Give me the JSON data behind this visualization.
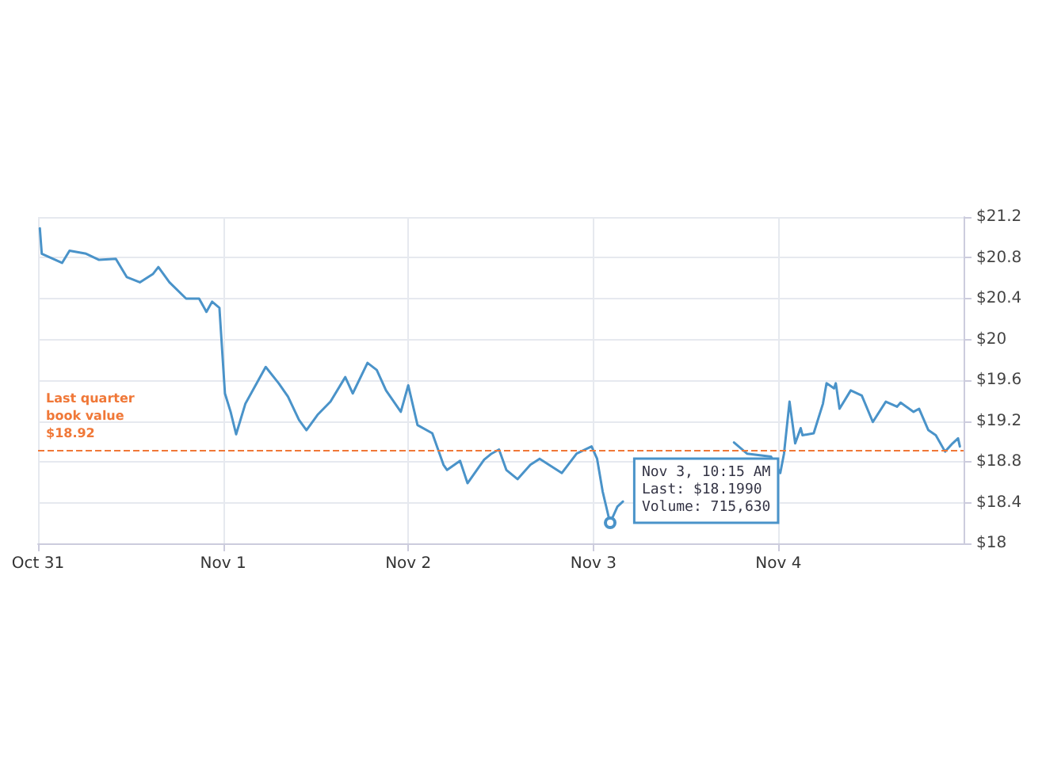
{
  "chart_data": {
    "type": "line",
    "x": [
      "--10-31T00:14",
      "--10-31T00:29",
      "--10-31T03:07",
      "--10-31T04:05",
      "--10-31T06:14",
      "--10-31T07:55",
      "--10-31T10:05",
      "--10-31T11:31",
      "--10-31T13:12",
      "--10-31T14:53",
      "--10-31T15:36",
      "--10-31T17:02",
      "--10-31T19:12",
      "--10-31T20:53",
      "--10-31T21:50",
      "--10-31T22:34",
      "--10-31T23:31",
      "--11-01T00:14",
      "--11-01T00:58",
      "--11-01T01:41",
      "--11-01T02:53",
      "--11-01T04:34",
      "--11-01T05:31",
      "--11-01T07:12",
      "--11-01T08:24",
      "--11-01T09:50",
      "--11-01T10:48",
      "--11-01T12:14",
      "--11-01T13:55",
      "--11-01T15:50",
      "--11-01T16:48",
      "--11-01T18:43",
      "--11-01T19:55",
      "--11-01T21:07",
      "--11-01T23:02",
      "--11-02T00:00",
      "--11-02T01:12",
      "--11-02T03:07",
      "--11-02T04:34",
      "--11-02T05:02",
      "--11-02T06:43",
      "--11-02T07:41",
      "--11-02T09:50",
      "--11-02T10:48",
      "--11-02T11:46",
      "--11-02T12:43",
      "--11-02T14:10",
      "--11-02T15:50",
      "--11-02T17:02",
      "--11-02T19:55",
      "--11-02T21:50",
      "--11-02T23:46",
      "--11-03T00:29",
      "--11-03T01:12",
      "--11-03T02:10",
      "--11-03T03:07",
      "--11-03T03:50",
      "--11-03T12:00",
      "--11-03T18:14",
      "--11-03T19:55",
      "--11-03T23:02",
      "--11-04T00:14",
      "--11-04T00:43",
      "--11-04T01:26",
      "--11-04T02:10",
      "--11-04T02:53",
      "--11-04T03:07",
      "--11-04T04:34",
      "--11-04T05:46",
      "--11-04T06:14",
      "--11-04T07:12",
      "--11-04T07:26",
      "--11-04T07:55",
      "--11-04T09:22",
      "--11-04T10:48",
      "--11-04T12:14",
      "--11-04T13:55",
      "--11-04T15:22",
      "--11-04T15:50",
      "--11-04T17:31",
      "--11-04T18:14",
      "--11-04T19:26",
      "--11-04T20:24",
      "--11-04T21:36",
      "--11-04T22:34",
      "--11-04T23:17",
      "--11-04T23:31"
    ],
    "series": [
      {
        "color": "#4a93c9",
        "values": [
          21.09,
          20.84,
          20.75,
          20.87,
          20.84,
          20.78,
          20.79,
          20.61,
          20.56,
          20.64,
          20.71,
          20.56,
          20.4,
          20.4,
          20.27,
          20.37,
          20.31,
          19.47,
          19.29,
          19.07,
          19.37,
          19.6,
          19.73,
          19.57,
          19.44,
          19.21,
          19.11,
          19.26,
          19.39,
          19.63,
          19.47,
          19.77,
          19.7,
          19.5,
          19.29,
          19.55,
          19.16,
          19.08,
          18.77,
          18.72,
          18.81,
          18.59,
          18.82,
          18.88,
          18.92,
          18.72,
          18.63,
          18.77,
          18.83,
          18.69,
          18.88,
          18.95,
          18.83,
          18.51,
          18.2,
          18.36,
          18.41,
          null,
          18.99,
          18.88,
          18.85,
          18.69,
          18.88,
          19.39,
          18.98,
          19.13,
          19.06,
          19.08,
          19.37,
          19.57,
          19.52,
          19.57,
          19.32,
          19.5,
          19.45,
          19.19,
          19.39,
          19.34,
          19.38,
          19.29,
          19.32,
          19.11,
          19.06,
          18.9,
          18.98,
          19.03,
          18.95
        ]
      }
    ],
    "xlim": [
      "--10-31T00:00",
      "--11-05T00:00"
    ],
    "xticks": [
      {
        "value": "--10-31",
        "label": "Oct 31"
      },
      {
        "value": "--11-01",
        "label": "Nov 1"
      },
      {
        "value": "--11-02",
        "label": "Nov 2"
      },
      {
        "value": "--11-03",
        "label": "Nov 3"
      },
      {
        "value": "--11-04",
        "label": "Nov 4"
      }
    ],
    "ylim": [
      18,
      21.2
    ],
    "yticks": [
      {
        "value": 18,
        "label": "$18"
      },
      {
        "value": 18.4,
        "label": "$18.4"
      },
      {
        "value": 18.8,
        "label": "$18.8"
      },
      {
        "value": 19.2,
        "label": "$19.2"
      },
      {
        "value": 19.6,
        "label": "$19.6"
      },
      {
        "value": 20,
        "label": "$20"
      },
      {
        "value": 20.4,
        "label": "$20.4"
      },
      {
        "value": 20.8,
        "label": "$20.8"
      },
      {
        "value": 21.2,
        "label": "$21.2"
      }
    ],
    "ref_lines": [
      {
        "axis": "y",
        "value": 18.92,
        "label": "Last quarter\nbook value\n$18.92",
        "color": "#f07838",
        "line_style": "dashed"
      }
    ],
    "annotations": [
      {
        "text": "Nov 3, 10:15 AM\nLast: $18.1990\nVolume: 715,630",
        "x": "--11-03T02:10",
        "y": 18.199
      }
    ],
    "grid": true,
    "marker": "none",
    "line_style": "solid"
  }
}
